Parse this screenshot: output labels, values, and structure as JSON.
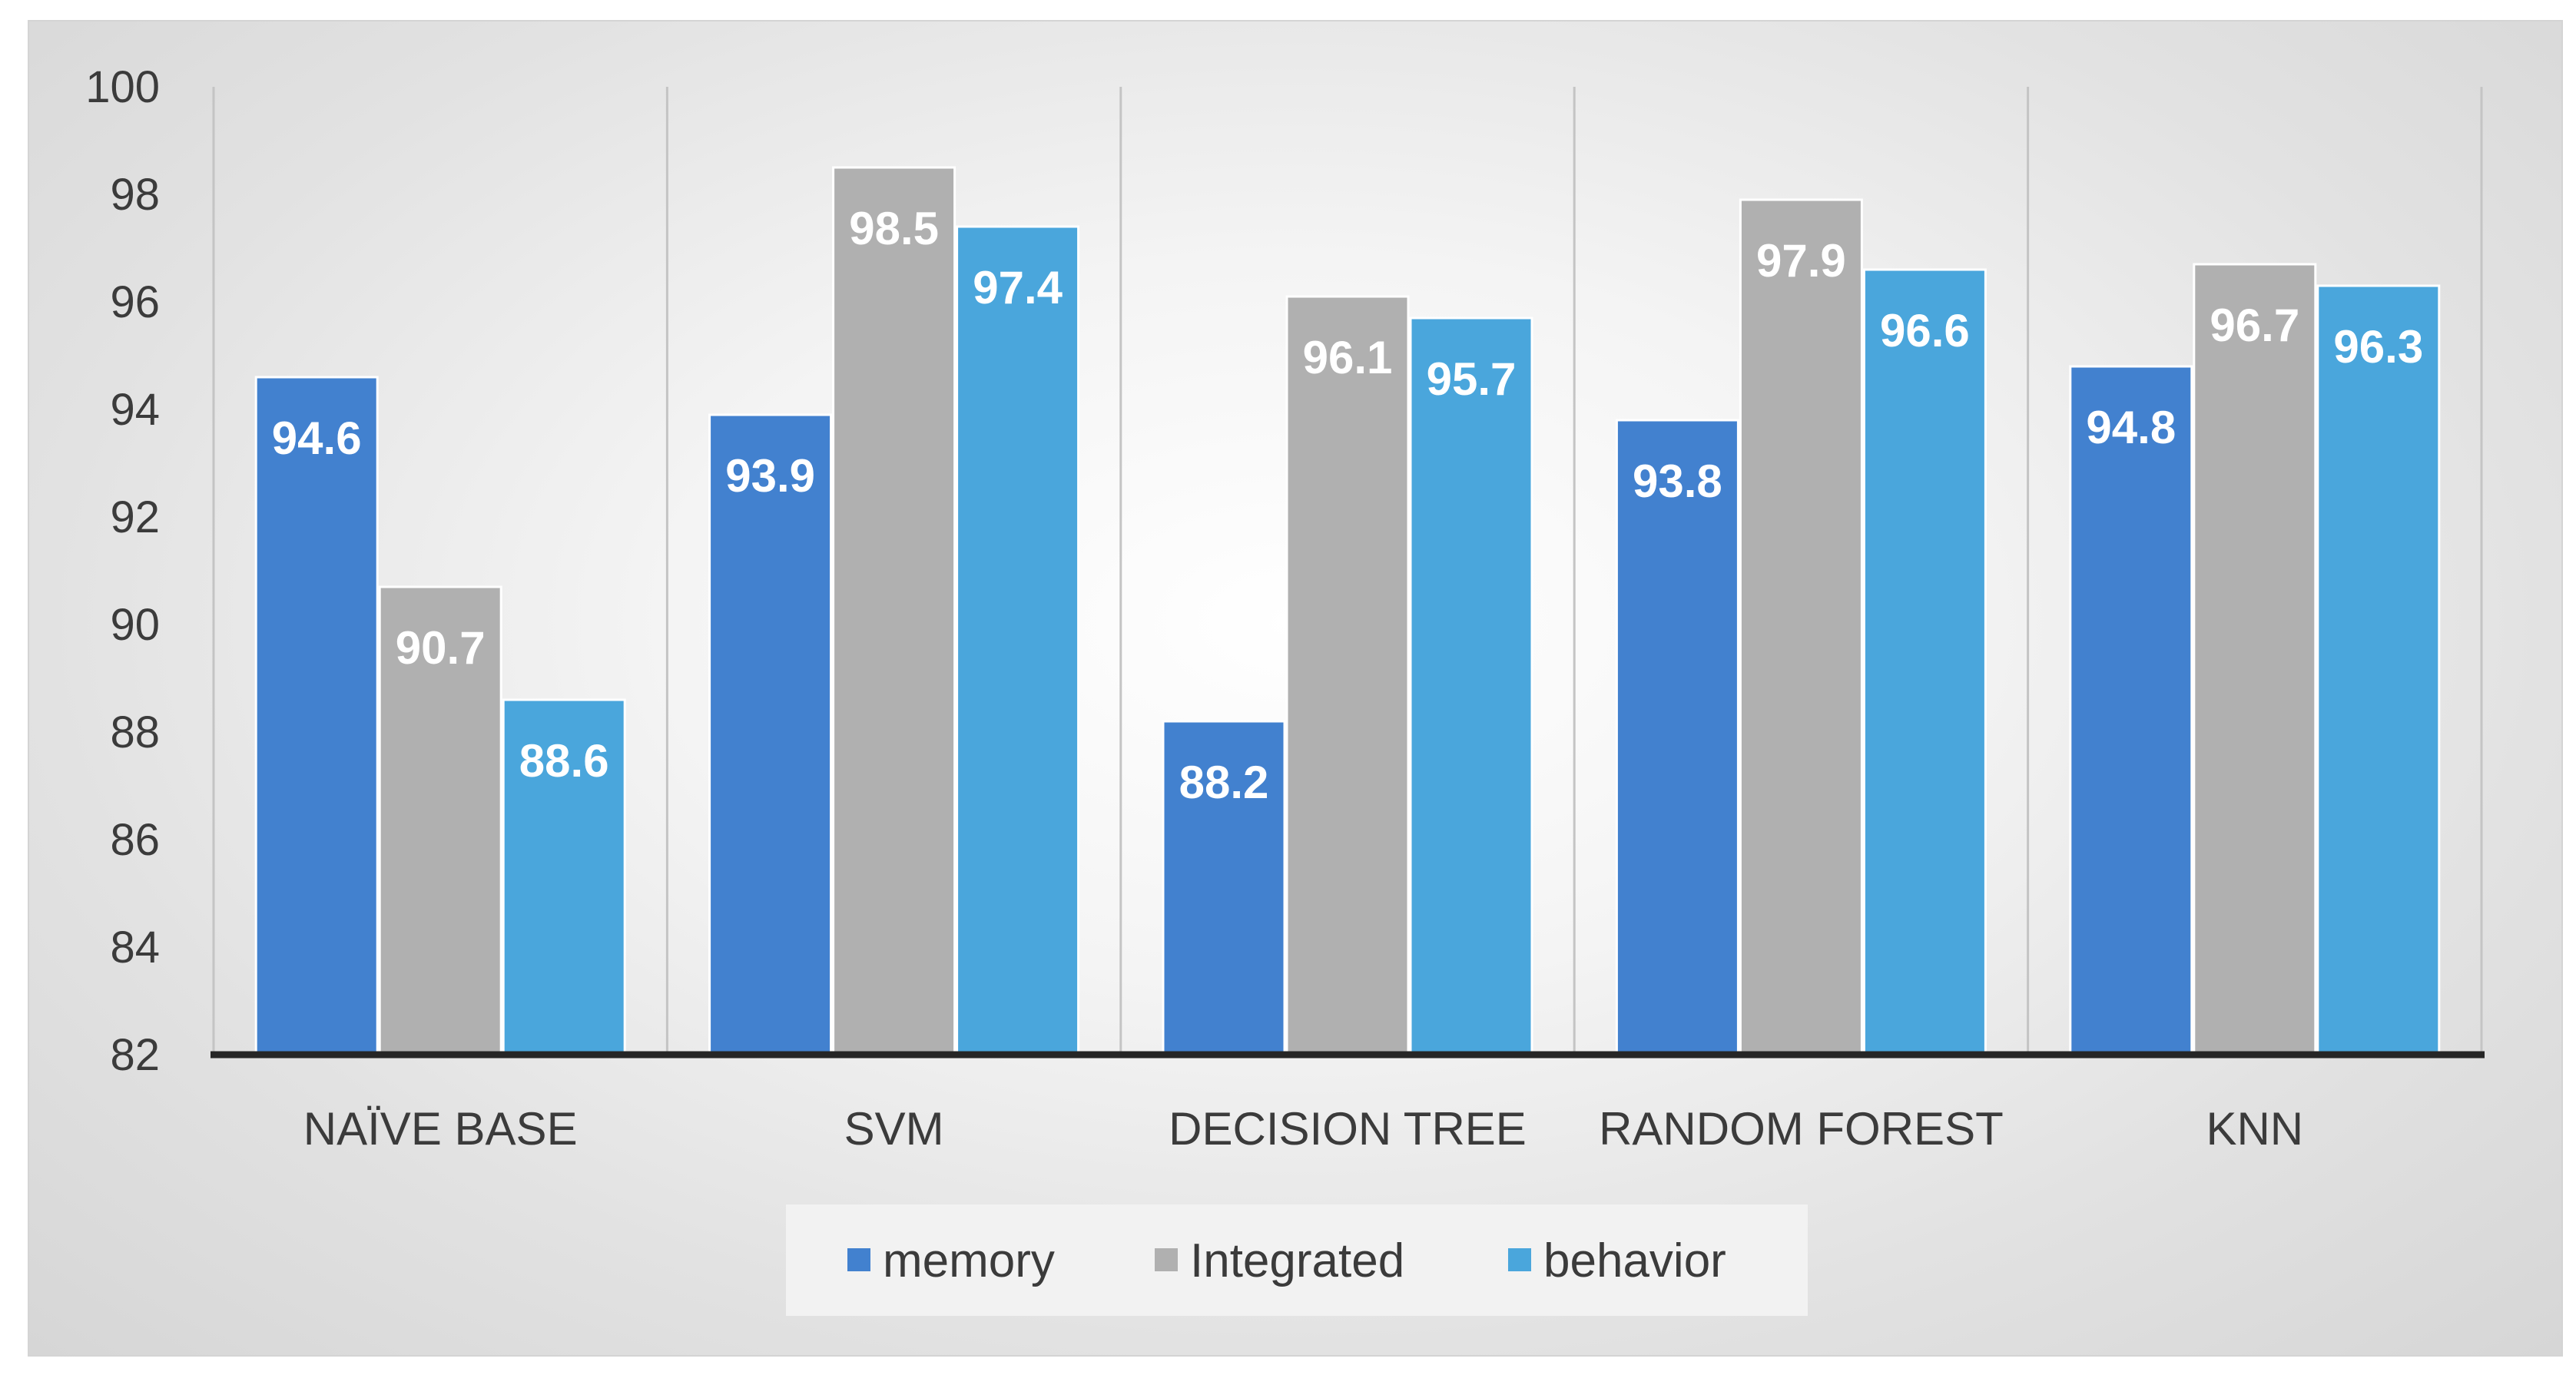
{
  "chart_data": {
    "type": "bar",
    "title": "",
    "xlabel": "",
    "ylabel": "",
    "categories": [
      "NAÏVE BASE",
      "SVM",
      "DECISION TREE",
      "RANDOM FOREST",
      "KNN"
    ],
    "series": [
      {
        "name": "memory",
        "color": "#4281cf",
        "values": [
          94.6,
          93.9,
          88.2,
          93.8,
          94.8
        ]
      },
      {
        "name": "Integrated",
        "color": "#b0b0b0",
        "values": [
          90.7,
          98.5,
          96.1,
          97.9,
          96.7
        ]
      },
      {
        "name": "behavior",
        "color": "#4aa6dc",
        "values": [
          88.6,
          97.4,
          95.7,
          96.6,
          96.3
        ]
      }
    ],
    "ylim": [
      82,
      100
    ],
    "yticks": [
      82,
      84,
      86,
      88,
      90,
      92,
      94,
      96,
      98,
      100
    ],
    "grid": "vertical category separators",
    "legend": "bottom-center"
  }
}
